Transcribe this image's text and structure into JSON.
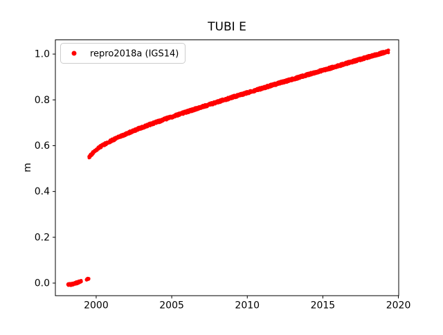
{
  "figure": {
    "background": "#ffffff"
  },
  "chart_data": {
    "type": "scatter",
    "title": "TUBI E",
    "xlabel": "",
    "ylabel": "m",
    "xlim": [
      1997.3,
      2020.02
    ],
    "ylim": [
      -0.055,
      1.062
    ],
    "x_ticks": [
      2000,
      2005,
      2010,
      2015,
      2020
    ],
    "x_tick_labels": [
      "2000",
      "2005",
      "2010",
      "2015",
      "2020"
    ],
    "y_ticks": [
      0.0,
      0.2,
      0.4,
      0.6,
      0.8,
      1.0
    ],
    "y_tick_labels": [
      "0.0",
      "0.2",
      "0.4",
      "0.6",
      "0.8",
      "1.0"
    ],
    "grid": false,
    "legend": {
      "position": "upper-left",
      "entries": [
        {
          "label": "repro2018a (IGS14)",
          "color": "#ff0000",
          "marker": "circle"
        }
      ]
    },
    "series": [
      {
        "name": "repro2018a (IGS14)",
        "color": "#ff0000",
        "marker_radius": 2.2,
        "segments": [
          {
            "name": "early-low-cluster",
            "step": 0.01,
            "jitter": 0.005,
            "keypoints": [
              [
                1998.12,
                -0.007
              ],
              [
                1998.35,
                -0.005
              ],
              [
                1998.55,
                -0.002
              ],
              [
                1998.75,
                0.002
              ],
              [
                1998.95,
                0.006
              ],
              [
                1999.02,
                0.007
              ]
            ]
          },
          {
            "name": "isolated-dot",
            "step": 0.008,
            "jitter": 0.003,
            "keypoints": [
              [
                1999.35,
                0.015
              ],
              [
                1999.43,
                0.018
              ],
              [
                1999.52,
                0.019
              ]
            ]
          },
          {
            "name": "main-curve",
            "step": 0.01,
            "jitter": 0.006,
            "keypoints": [
              [
                1999.52,
                0.548
              ],
              [
                1999.6,
                0.556
              ],
              [
                1999.7,
                0.563
              ],
              [
                1999.85,
                0.572
              ],
              [
                2000.0,
                0.582
              ],
              [
                2000.25,
                0.594
              ],
              [
                2000.5,
                0.604
              ],
              [
                2000.75,
                0.613
              ],
              [
                2001.0,
                0.622
              ],
              [
                2002.0,
                0.652
              ],
              [
                2003.0,
                0.679
              ],
              [
                2004.0,
                0.703
              ],
              [
                2005.0,
                0.726
              ],
              [
                2006.0,
                0.748
              ],
              [
                2007.0,
                0.769
              ],
              [
                2008.0,
                0.79
              ],
              [
                2009.0,
                0.811
              ],
              [
                2010.0,
                0.831
              ],
              [
                2011.0,
                0.851
              ],
              [
                2012.0,
                0.871
              ],
              [
                2013.0,
                0.89
              ],
              [
                2014.0,
                0.91
              ],
              [
                2015.0,
                0.929
              ],
              [
                2016.0,
                0.948
              ],
              [
                2017.0,
                0.968
              ],
              [
                2018.0,
                0.987
              ],
              [
                2019.0,
                1.006
              ],
              [
                2019.35,
                1.012
              ]
            ]
          }
        ]
      }
    ]
  }
}
